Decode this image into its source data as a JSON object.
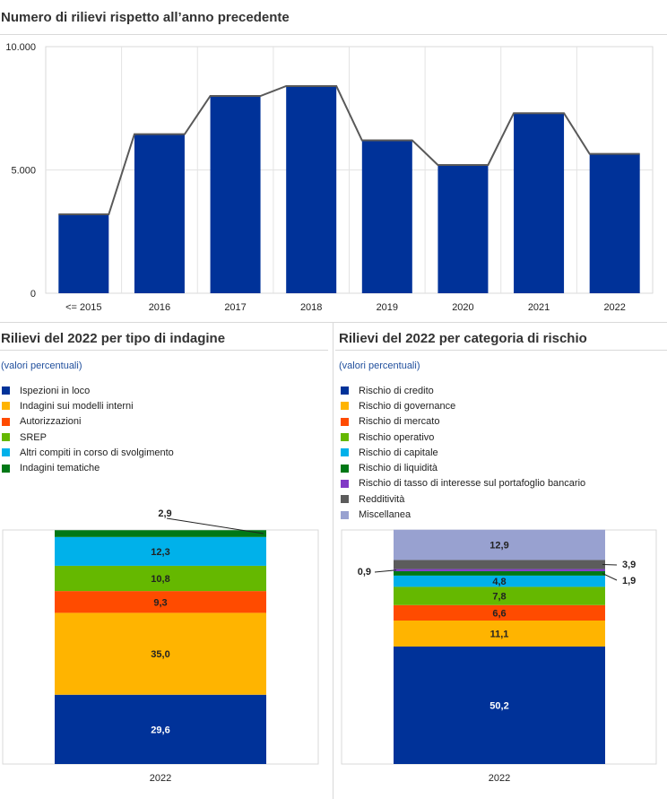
{
  "top": {
    "title": "Numero di rilievi rispetto all’anno precedente"
  },
  "left": {
    "title": "Rilievi del 2022 per tipo di indagine",
    "subtitle": "(valori percentuali)"
  },
  "right": {
    "title": "Rilievi del 2022 per categoria di rischio",
    "subtitle": "(valori percentuali)"
  },
  "chart_data": [
    {
      "type": "bar",
      "title": "Numero di rilievi rispetto all’anno precedente",
      "categories": [
        "<= 2015",
        "2016",
        "2017",
        "2018",
        "2019",
        "2020",
        "2021",
        "2022"
      ],
      "values": [
        3200,
        6450,
        8000,
        8400,
        6200,
        5200,
        7300,
        5650
      ],
      "ylim": [
        0,
        10000
      ],
      "yticks": [
        0,
        5000,
        10000
      ],
      "ytick_labels": [
        "0",
        "5.000",
        "10.000"
      ],
      "connector_line": true,
      "colors": {
        "bar": "#003299",
        "line": "#595959"
      },
      "grid": true
    },
    {
      "type": "bar",
      "stacked": true,
      "title": "Rilievi del 2022 per tipo di indagine",
      "categories": [
        "2022"
      ],
      "ylim": [
        0,
        100
      ],
      "series": [
        {
          "name": "Ispezioni in loco",
          "values": [
            29.6
          ],
          "label": "29,6",
          "color": "#003299"
        },
        {
          "name": "Indagini sui modelli interni",
          "values": [
            35.0
          ],
          "label": "35,0",
          "color": "#ffb400"
        },
        {
          "name": "Autorizzazioni",
          "values": [
            9.3
          ],
          "label": "9,3",
          "color": "#ff4b00"
        },
        {
          "name": "SREP",
          "values": [
            10.8
          ],
          "label": "10,8",
          "color": "#65b800"
        },
        {
          "name": "Altri compiti in corso di svolgimento",
          "values": [
            12.3
          ],
          "label": "12,3",
          "color": "#00b1ea"
        },
        {
          "name": "Indagini tematiche",
          "values": [
            2.9
          ],
          "label": "2,9",
          "color": "#007816"
        }
      ]
    },
    {
      "type": "bar",
      "stacked": true,
      "title": "Rilievi del 2022 per categoria di rischio",
      "categories": [
        "2022"
      ],
      "ylim": [
        0,
        100
      ],
      "series": [
        {
          "name": "Rischio di credito",
          "values": [
            50.2
          ],
          "label": "50,2",
          "color": "#003299"
        },
        {
          "name": "Rischio di governance",
          "values": [
            11.1
          ],
          "label": "11,1",
          "color": "#ffb400"
        },
        {
          "name": "Rischio di mercato",
          "values": [
            6.6
          ],
          "label": "6,6",
          "color": "#ff4b00"
        },
        {
          "name": "Rischio operativo",
          "values": [
            7.8
          ],
          "label": "7,8",
          "color": "#65b800"
        },
        {
          "name": "Rischio di capitale",
          "values": [
            4.8
          ],
          "label": "4,8",
          "color": "#00b1ea"
        },
        {
          "name": "Rischio di liquidità",
          "values": [
            1.9
          ],
          "label": "1,9",
          "color": "#007816"
        },
        {
          "name": "Rischio di tasso di interesse sul portafoglio bancario",
          "values": [
            0.9
          ],
          "label": "0,9",
          "color": "#8139c6"
        },
        {
          "name": "Redditività",
          "values": [
            3.9
          ],
          "label": "3,9",
          "color": "#5c5c5c"
        },
        {
          "name": "Miscellanea",
          "values": [
            12.9
          ],
          "label": "12,9",
          "color": "#98a1d0"
        }
      ]
    }
  ]
}
